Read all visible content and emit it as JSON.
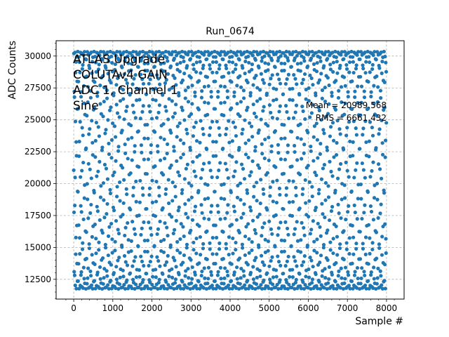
{
  "chart_data": {
    "type": "scatter",
    "title": "Run_0674",
    "xlabel": "Sample #",
    "ylabel": "ADC Counts",
    "xlim": [
      -450,
      8450
    ],
    "ylim": [
      10950,
      31200
    ],
    "x_ticks": [
      0,
      1000,
      2000,
      3000,
      4000,
      5000,
      6000,
      7000,
      8000
    ],
    "y_ticks": [
      12500,
      15000,
      17500,
      20000,
      22500,
      25000,
      27500,
      30000
    ],
    "grid": true,
    "signal": {
      "shape": "sine",
      "n_samples": 8000,
      "min": 11750,
      "max": 30350,
      "mean": 20989.568,
      "rms": 6661.432,
      "color": "#1f77b4"
    },
    "annotations_left": [
      "ATLAS Upgrade",
      "COLUTAv4 GAIN",
      "ADC 1, Channel 1",
      "Sine"
    ],
    "annotations_right": [
      "Mean = 20989.568",
      "RMS = 6661.432"
    ]
  }
}
